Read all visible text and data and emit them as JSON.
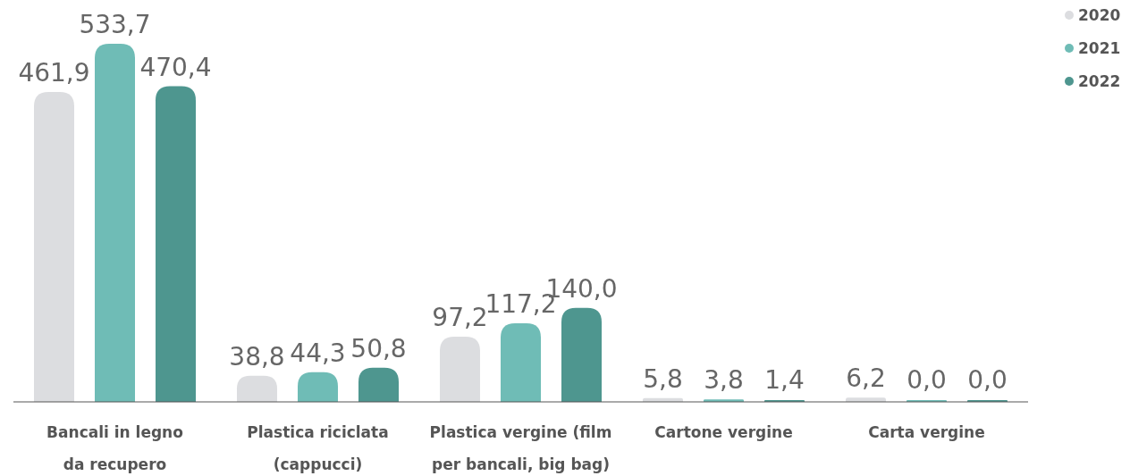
{
  "chart_data": {
    "type": "bar",
    "categories": [
      "Bancali in legno da recupero",
      "Plastica riciclata (cappucci)",
      "Plastica vergine (film per bancali, big bag)",
      "Cartone vergine",
      "Carta vergine"
    ],
    "series": [
      {
        "name": "2020",
        "color": "#dcdde0",
        "values": [
          461.9,
          38.8,
          97.2,
          5.8,
          6.2
        ],
        "value_labels": [
          "461,9",
          "38,8",
          "97,2",
          "5,8",
          "6,2"
        ]
      },
      {
        "name": "2021",
        "color": "#6fbcb6",
        "values": [
          533.7,
          44.3,
          117.2,
          3.8,
          0.0
        ],
        "value_labels": [
          "533,7",
          "44,3",
          "117,2",
          "3,8",
          "0,0"
        ]
      },
      {
        "name": "2022",
        "color": "#4e968f",
        "values": [
          470.4,
          50.8,
          140.0,
          1.4,
          0.0
        ],
        "value_labels": [
          "470,4",
          "50,8",
          "140,0",
          "1,4",
          "0,0"
        ]
      }
    ],
    "legend": "top right"
  }
}
